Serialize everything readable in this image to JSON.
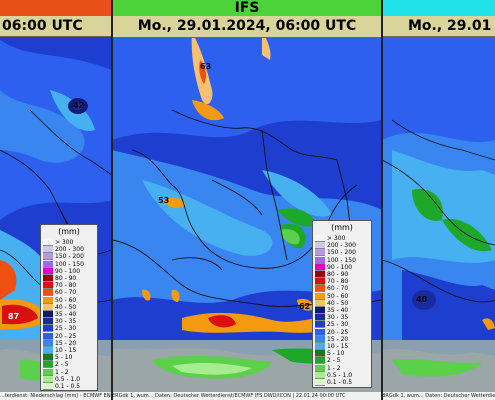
{
  "panels": {
    "left": {
      "header_date": "06:00 UTC",
      "strip_color": "#e8501a",
      "max_a": "42",
      "max_b": "87",
      "footer": "...terdienst: Niederschlag (mm) - ECMWF ENS ... 22.01.24 00:00 UTC"
    },
    "center": {
      "model": "IFS",
      "header_date": "Mo., 29.01.2024, 06:00 UTC",
      "strip_color": "#4cd23a",
      "max_a": "63",
      "max_b": "53",
      "max_c": "62",
      "footer": "ERGdk 1, wum... Daten: Deutscher Wetterdienst/ECMWF IFS DWD/ICON | 22.01.24 00:00 UTC"
    },
    "right": {
      "header_date": "Mo., 29.01",
      "strip_color": "#20e0e8",
      "max_a": "40",
      "footer": "BRGdk 1, wum... Daten: Deutscher Wetterdienst"
    }
  },
  "legend": {
    "unit": "(mm)",
    "classes": [
      {
        "label": "> 300",
        "color": "#f4f4f4"
      },
      {
        "label": "200 - 300",
        "color": "#d0c8e8"
      },
      {
        "label": "150 - 200",
        "color": "#b898e0"
      },
      {
        "label": "100 - 150",
        "color": "#9a6ee0"
      },
      {
        "label": "90 - 100",
        "color": "#e000c0"
      },
      {
        "label": "80 - 90",
        "color": "#a00000"
      },
      {
        "label": "70 - 80",
        "color": "#d81010"
      },
      {
        "label": "60 - 70",
        "color": "#ef5010"
      },
      {
        "label": "50 - 60",
        "color": "#f39a10"
      },
      {
        "label": "40 - 50",
        "color": "#f5c070"
      },
      {
        "label": "35 - 40",
        "color": "#101878"
      },
      {
        "label": "30 - 35",
        "color": "#1a2aa0"
      },
      {
        "label": "25 - 30",
        "color": "#1e3ed0"
      },
      {
        "label": "20 - 25",
        "color": "#2e60f0"
      },
      {
        "label": "15 - 20",
        "color": "#3a86f0"
      },
      {
        "label": "10 - 15",
        "color": "#46b0f0"
      },
      {
        "label": "5 - 10",
        "color": "#127a20"
      },
      {
        "label": "2 - 5",
        "color": "#1ea82a"
      },
      {
        "label": "1 - 2",
        "color": "#5cd04a"
      },
      {
        "label": "0.5 - 1.0",
        "color": "#a8ec90"
      },
      {
        "label": "0.1 - 0.5",
        "color": "#d8f8c8"
      }
    ]
  }
}
